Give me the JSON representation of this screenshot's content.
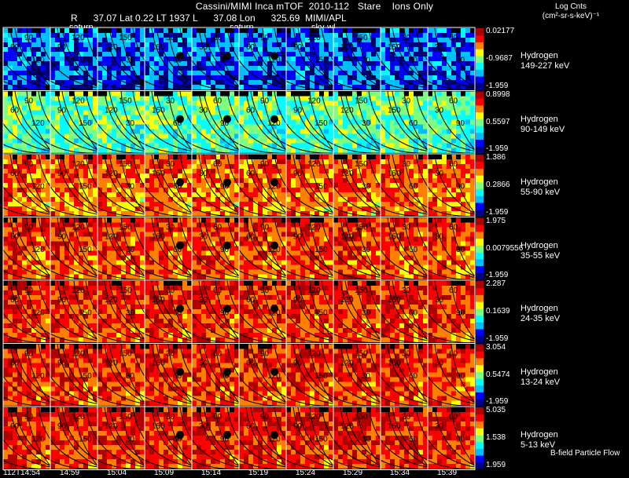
{
  "header": {
    "title": "Cassini/MIMI Inca mTOF  2010-112   Stare    Ions Only",
    "subtitle": "R      37.07 Lat 0.22 LT 1937 L      37.08 Lon      325.69  MIMI/APL",
    "colorbar_title_1": "Log Cnts",
    "colorbar_title_2": "(cm²-sr-s-keV)⁻¹"
  },
  "overlay_labels": [
    "saturn",
    "saturn",
    "sky-wl"
  ],
  "footer": {
    "flow_label": "B-field Particle Flow"
  },
  "colors": {
    "background": "#000000",
    "contour": "#000000",
    "frame": "#ffffff"
  },
  "chart_data": {
    "type": "heatmap",
    "x_label": "",
    "x_ticks": [
      "112T14:54",
      "14:59",
      "15:04",
      "15:09",
      "15:14",
      "15:19",
      "15:24",
      "15:29",
      "15:34",
      "15:39"
    ],
    "contour_labels": [
      "30",
      "60",
      "90",
      "120",
      "150"
    ],
    "colormap": [
      "#000080",
      "#0000ff",
      "#00bfff",
      "#00ffff",
      "#7fff7f",
      "#ffff00",
      "#ff8000",
      "#ff0000",
      "#b00000"
    ],
    "rows": [
      {
        "species": "Hydrogen",
        "energy": "149-227 keV",
        "cb_max": "0.02177",
        "cb_mid": "-0.9687",
        "cb_min": "-1.959",
        "level": 0.25
      },
      {
        "species": "Hydrogen",
        "energy": "90-149 keV",
        "cb_max": "0.8998",
        "cb_mid": "0.5597",
        "cb_min": "-1.959",
        "level": 0.5
      },
      {
        "species": "Hydrogen",
        "energy": "55-90 keV",
        "cb_max": "1.386",
        "cb_mid": "0.2866",
        "cb_min": "-1.959",
        "level": 0.78
      },
      {
        "species": "Hydrogen",
        "energy": "35-55 keV",
        "cb_max": "1.975",
        "cb_mid": "0.0079556",
        "cb_min": "-1.959",
        "level": 0.82
      },
      {
        "species": "Hydrogen",
        "energy": "24-35 keV",
        "cb_max": "2.287",
        "cb_mid": "0.1639",
        "cb_min": "-1.959",
        "level": 0.84
      },
      {
        "species": "Hydrogen",
        "energy": "13-24 keV",
        "cb_max": "3.054",
        "cb_mid": "0.5474",
        "cb_min": "-1.959",
        "level": 0.84
      },
      {
        "species": "Hydrogen",
        "energy": "5-13 keV",
        "cb_max": "5.035",
        "cb_mid": "1.538",
        "cb_min": "1.959",
        "level": 0.86
      }
    ]
  }
}
